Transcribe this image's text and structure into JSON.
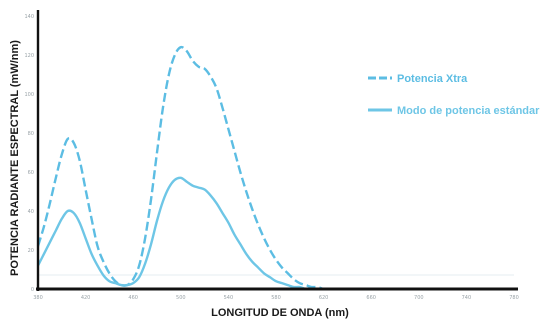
{
  "chart_data": {
    "type": "line",
    "title": "",
    "xlabel": "LONGITUD DE ONDA (nm)",
    "ylabel": "POTENCIA RADIANTE ESPECTRAL (mW/nm)",
    "xlim": [
      380,
      780
    ],
    "ylim": [
      0,
      140
    ],
    "x_ticks": [
      "380",
      "420",
      "460",
      "500",
      "540",
      "580",
      "620",
      "660",
      "700",
      "740",
      "780"
    ],
    "y_ticks": [
      "0",
      "20",
      "40",
      "60",
      "80",
      "100",
      "120",
      "140"
    ],
    "legend_position": "right",
    "grid": false,
    "series": [
      {
        "name": "Potencia Xtra",
        "style": "dashed",
        "color": "#5cbde3",
        "x": [
          380,
          385,
          390,
          395,
          400,
          405,
          410,
          415,
          420,
          425,
          430,
          435,
          440,
          445,
          450,
          455,
          460,
          465,
          470,
          475,
          480,
          485,
          490,
          495,
          500,
          505,
          510,
          515,
          520,
          525,
          530,
          535,
          540,
          545,
          550,
          555,
          560,
          565,
          570,
          575,
          580,
          585,
          590,
          595,
          600,
          605,
          610,
          615,
          620,
          625,
          630,
          635,
          640,
          645,
          650,
          660,
          670,
          680,
          690,
          700,
          720,
          740,
          760,
          780
        ],
        "y": [
          22,
          32,
          44,
          57,
          69,
          77,
          75,
          66,
          51,
          36,
          22,
          14,
          8,
          4,
          2,
          2,
          5,
          12,
          26,
          46,
          70,
          93,
          110,
          120,
          124,
          122,
          117,
          114,
          113,
          109,
          103,
          93,
          82,
          71,
          60,
          50,
          41,
          33,
          26,
          20,
          15,
          11,
          8,
          5,
          3,
          2,
          1,
          1,
          0,
          0,
          0,
          0,
          0,
          0,
          0,
          0,
          0,
          0,
          0,
          0,
          0,
          0,
          0,
          0
        ]
      },
      {
        "name": "Modo de potencia estándar",
        "style": "solid",
        "color": "#6ec6e6",
        "x": [
          380,
          385,
          390,
          395,
          400,
          405,
          410,
          415,
          420,
          425,
          430,
          435,
          440,
          445,
          450,
          455,
          460,
          465,
          470,
          475,
          480,
          485,
          490,
          495,
          500,
          505,
          510,
          515,
          520,
          525,
          530,
          535,
          540,
          545,
          550,
          555,
          560,
          565,
          570,
          575,
          580,
          585,
          590,
          595,
          600,
          605,
          610,
          615,
          620,
          625,
          630,
          635,
          640,
          645,
          650,
          660,
          670,
          680,
          690,
          700,
          720,
          740,
          760,
          780
        ],
        "y": [
          12,
          18,
          24,
          30,
          36,
          40,
          39,
          34,
          26,
          18,
          12,
          7,
          4,
          3,
          2,
          2,
          3,
          6,
          13,
          23,
          35,
          45,
          52,
          56,
          57,
          55,
          53,
          52,
          51,
          48,
          44,
          39,
          34,
          28,
          23,
          18,
          14,
          11,
          8,
          6,
          4,
          3,
          2,
          1,
          1,
          0,
          0,
          0,
          0,
          0,
          0,
          0,
          0,
          0,
          0,
          0,
          0,
          0,
          0,
          0,
          0,
          0,
          0,
          0
        ]
      }
    ]
  }
}
